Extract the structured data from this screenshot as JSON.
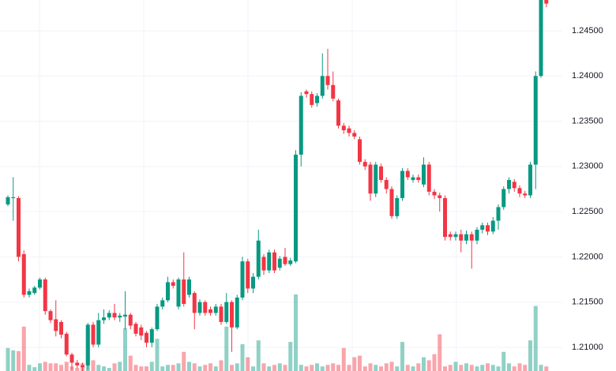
{
  "chart_data": {
    "type": "candlestick",
    "colors": {
      "up": "#089981",
      "down": "#f23645"
    },
    "grid": true,
    "ylim": [
      1.20738,
      1.2484
    ],
    "yticks": [
      {
        "value": 1.21,
        "label": "1.21000"
      },
      {
        "value": 1.215,
        "label": "1.21500"
      },
      {
        "value": 1.22,
        "label": "1.22000"
      },
      {
        "value": 1.225,
        "label": "1.22500"
      },
      {
        "value": 1.23,
        "label": "1.23000"
      },
      {
        "value": 1.235,
        "label": "1.23500"
      },
      {
        "value": 1.24,
        "label": "1.24000"
      },
      {
        "value": 1.245,
        "label": "1.24500"
      }
    ],
    "open": [
      1.2258,
      1.2265,
      1.2265,
      1.2203,
      1.2158,
      1.216,
      1.2166,
      1.2175,
      1.214,
      1.2131,
      1.2128,
      1.2115,
      1.2092,
      1.2083,
      1.208,
      1.208,
      1.2125,
      1.2103,
      1.213,
      1.2133,
      1.2138,
      1.2133,
      1.2134,
      1.2136,
      1.2126,
      1.2122,
      1.2116,
      1.2105,
      1.212,
      1.2145,
      1.2152,
      1.2172,
      1.2145,
      1.2175,
      1.2158,
      1.216,
      1.2138,
      1.215,
      1.2142,
      1.2138,
      1.2145,
      1.2128,
      1.215,
      1.2122,
      1.2155,
      1.2195,
      1.2165,
      1.2178,
      1.22,
      1.2185,
      1.2205,
      1.2188,
      1.22,
      1.2192,
      1.2195,
      1.2313,
      1.2383,
      1.238,
      1.237,
      1.2378,
      1.24,
      1.239,
      1.2373,
      1.2345,
      1.2342,
      1.2337,
      1.233,
      1.2305,
      1.2302,
      1.227,
      1.23,
      1.2285,
      1.2275,
      1.2245,
      1.2265,
      1.2295,
      1.2285,
      1.2288,
      1.228,
      1.2302,
      1.2272,
      1.2268,
      1.2265,
      1.2225,
      1.2222,
      1.2225,
      1.2218,
      1.2225,
      1.2218,
      1.223,
      1.2235,
      1.2228,
      1.224,
      1.2255,
      1.2275,
      1.2283,
      1.2276,
      1.227,
      1.2268,
      1.2302,
      1.24,
      1.2484
    ],
    "close": [
      1.2266,
      1.2266,
      1.22,
      1.2158,
      1.2162,
      1.2166,
      1.2175,
      1.214,
      1.213,
      1.2118,
      1.2114,
      1.2092,
      1.2083,
      1.208,
      1.2078,
      1.2125,
      1.2103,
      1.213,
      1.2133,
      1.2138,
      1.2133,
      1.2135,
      1.2136,
      1.2124,
      1.2115,
      1.2113,
      1.2105,
      1.212,
      1.2145,
      1.2152,
      1.2172,
      1.2168,
      1.2175,
      1.2148,
      1.2175,
      1.2138,
      1.215,
      1.2138,
      1.2138,
      1.2145,
      1.2128,
      1.215,
      1.2122,
      1.2155,
      1.2195,
      1.2165,
      1.2178,
      1.2218,
      1.2185,
      1.2205,
      1.2185,
      1.2198,
      1.2192,
      1.2196,
      1.2313,
      1.2378,
      1.238,
      1.2368,
      1.2378,
      1.24,
      1.239,
      1.2375,
      1.2345,
      1.234,
      1.2337,
      1.2333,
      1.2305,
      1.23,
      1.227,
      1.2302,
      1.2285,
      1.2275,
      1.2245,
      1.2265,
      1.2295,
      1.2288,
      1.2288,
      1.2285,
      1.2302,
      1.2272,
      1.2268,
      1.2265,
      1.2222,
      1.2222,
      1.2225,
      1.2218,
      1.2225,
      1.2218,
      1.223,
      1.2235,
      1.2228,
      1.224,
      1.2255,
      1.2275,
      1.2285,
      1.2276,
      1.227,
      1.2268,
      1.2302,
      1.24,
      1.2485,
      1.248
    ],
    "high": [
      1.2268,
      1.2288,
      1.2267,
      1.2207,
      1.2165,
      1.2168,
      1.2177,
      1.2177,
      1.2142,
      1.2152,
      1.213,
      1.2117,
      1.2094,
      1.2086,
      1.2083,
      1.2127,
      1.2128,
      1.2138,
      1.2142,
      1.2141,
      1.2148,
      1.2138,
      1.2162,
      1.2138,
      1.2128,
      1.2125,
      1.2118,
      1.2122,
      1.2148,
      1.2155,
      1.2178,
      1.2175,
      1.2177,
      1.2205,
      1.2178,
      1.2162,
      1.2153,
      1.2152,
      1.2145,
      1.2148,
      1.2148,
      1.216,
      1.2152,
      1.2158,
      1.22,
      1.2198,
      1.2182,
      1.223,
      1.2203,
      1.2208,
      1.2208,
      1.2201,
      1.221,
      1.2199,
      1.2318,
      1.2382,
      1.2385,
      1.2383,
      1.2381,
      1.2425,
      1.243,
      1.2405,
      1.2375,
      1.2348,
      1.2345,
      1.234,
      1.2333,
      1.2308,
      1.2305,
      1.2305,
      1.2303,
      1.2288,
      1.2278,
      1.2268,
      1.2298,
      1.2298,
      1.2291,
      1.2291,
      1.231,
      1.2305,
      1.2275,
      1.2271,
      1.2268,
      1.2228,
      1.2228,
      1.223,
      1.2229,
      1.2228,
      1.2233,
      1.2238,
      1.2238,
      1.2244,
      1.2258,
      1.2278,
      1.2288,
      1.2286,
      1.2279,
      1.2273,
      1.2305,
      1.2405,
      1.25,
      1.2486
    ],
    "low": [
      1.2256,
      1.224,
      1.2195,
      1.2155,
      1.2155,
      1.2158,
      1.2164,
      1.2136,
      1.2127,
      1.2112,
      1.211,
      1.209,
      1.2075,
      1.2077,
      1.2073,
      1.2075,
      1.21,
      1.21,
      1.2126,
      1.213,
      1.213,
      1.2128,
      1.212,
      1.212,
      1.2112,
      1.2108,
      1.21,
      1.21,
      1.2118,
      1.2142,
      1.215,
      1.2165,
      1.2142,
      1.2145,
      1.2155,
      1.212,
      1.2135,
      1.2135,
      1.2135,
      1.2135,
      1.2125,
      1.2126,
      1.2095,
      1.212,
      1.2152,
      1.216,
      1.216,
      1.2175,
      1.218,
      1.2182,
      1.2182,
      1.2185,
      1.219,
      1.219,
      1.2193,
      1.23,
      1.2376,
      1.2365,
      1.2366,
      1.2375,
      1.2385,
      1.2372,
      1.2342,
      1.2336,
      1.2333,
      1.233,
      1.2302,
      1.2296,
      1.2262,
      1.2266,
      1.2282,
      1.227,
      1.2242,
      1.2242,
      1.2262,
      1.2285,
      1.2282,
      1.2282,
      1.2277,
      1.2268,
      1.2264,
      1.225,
      1.2218,
      1.2218,
      1.2218,
      1.2205,
      1.2214,
      1.2187,
      1.2214,
      1.2226,
      1.2224,
      1.2225,
      1.223,
      1.2252,
      1.227,
      1.2272,
      1.2266,
      1.2265,
      1.2265,
      1.2275,
      1.2398,
      1.2476
    ],
    "volume": [
      30,
      27,
      26,
      58,
      8,
      5,
      10,
      12,
      10,
      10,
      8,
      12,
      6,
      4,
      10,
      55,
      14,
      8,
      6,
      4,
      10,
      12,
      56,
      20,
      8,
      6,
      6,
      12,
      42,
      6,
      8,
      8,
      10,
      25,
      12,
      10,
      6,
      8,
      10,
      6,
      14,
      58,
      8,
      10,
      35,
      18,
      6,
      40,
      10,
      6,
      8,
      10,
      8,
      38,
      100,
      8,
      6,
      8,
      10,
      6,
      8,
      10,
      8,
      30,
      8,
      18,
      20,
      6,
      10,
      8,
      6,
      10,
      12,
      6,
      38,
      8,
      6,
      10,
      18,
      14,
      22,
      48,
      6,
      8,
      12,
      8,
      10,
      8,
      6,
      8,
      10,
      8,
      6,
      25,
      10,
      6,
      10,
      8,
      40,
      85,
      8,
      6
    ]
  }
}
